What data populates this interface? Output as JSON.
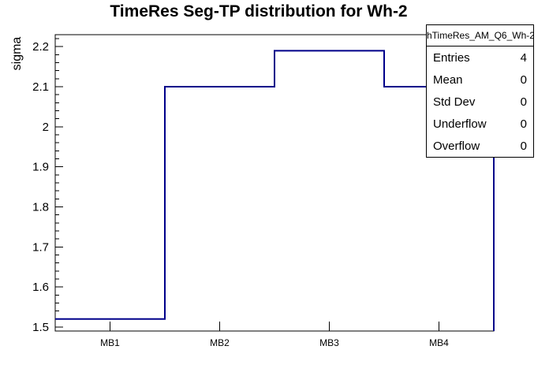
{
  "stats_box": {
    "header": "hTimeRes_AM_Q6_Wh-2",
    "rows": [
      {
        "label": "Entries",
        "value": "4"
      },
      {
        "label": "Mean",
        "value": "0"
      },
      {
        "label": "Std Dev",
        "value": "0"
      },
      {
        "label": "Underflow",
        "value": "0"
      },
      {
        "label": "Overflow",
        "value": "0"
      }
    ]
  },
  "chart_data": {
    "type": "bar",
    "style": "step-histogram-outline",
    "title": "TimeRes Seg-TP distribution for Wh-2",
    "xlabel": "",
    "ylabel": "sigma",
    "categories": [
      "MB1",
      "MB2",
      "MB3",
      "MB4"
    ],
    "values": [
      1.52,
      2.1,
      2.19,
      2.1
    ],
    "ylim": [
      1.49,
      2.23
    ],
    "yticks": [
      1.5,
      1.6,
      1.7,
      1.8,
      1.9,
      2,
      2.1,
      2.2
    ],
    "ytick_labels": [
      "1.5",
      "1.6",
      "1.7",
      "1.8",
      "1.9",
      "2",
      "2.1",
      "2.2"
    ],
    "minor_tick_step": 0.02,
    "grid": false,
    "legend": false,
    "line_color": "#00008a",
    "frame_color": "#000000",
    "background_color": "#ffffff"
  }
}
